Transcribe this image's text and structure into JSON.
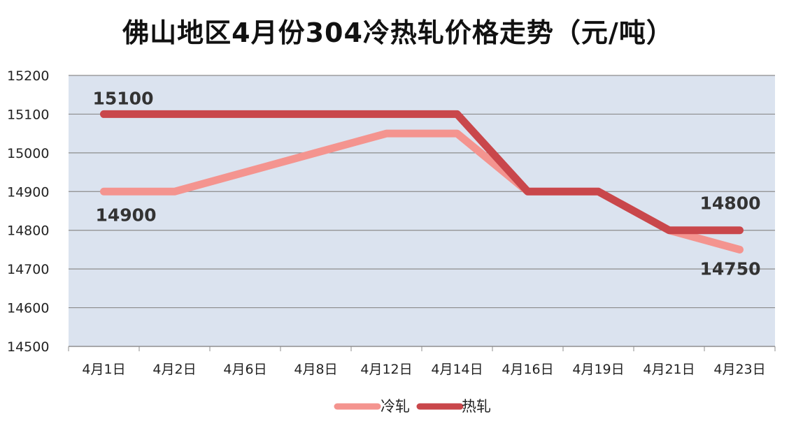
{
  "chart_data": {
    "type": "line",
    "title": "佛山地区4月份304冷热轧价格走势（元/吨）",
    "categories": [
      "4月1日",
      "4月2日",
      "4月6日",
      "4月8日",
      "4月12日",
      "4月14日",
      "4月16日",
      "4月19日",
      "4月21日",
      "4月23日"
    ],
    "series": [
      {
        "name": "冷轧",
        "color": "#f4948f",
        "values": [
          14900,
          14900,
          14950,
          15000,
          15050,
          15050,
          14900,
          14900,
          14800,
          14750
        ]
      },
      {
        "name": "热轧",
        "color": "#c9474b",
        "values": [
          15100,
          15100,
          15100,
          15100,
          15100,
          15100,
          14900,
          14900,
          14800,
          14800
        ]
      }
    ],
    "ylim": [
      14500,
      15200
    ],
    "yticks": [
      14500,
      14600,
      14700,
      14800,
      14900,
      15000,
      15100,
      15200
    ],
    "grid": true,
    "legend_position": "bottom",
    "annotations": [
      {
        "text": "15100",
        "series": 1,
        "index": 0
      },
      {
        "text": "14900",
        "series": 0,
        "index": 0
      },
      {
        "text": "14800",
        "series": 1,
        "index": 9
      },
      {
        "text": "14750",
        "series": 0,
        "index": 9
      }
    ]
  }
}
